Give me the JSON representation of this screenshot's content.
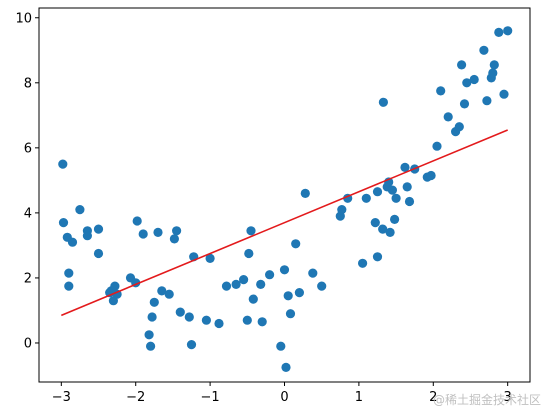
{
  "chart_data": {
    "type": "scatter",
    "title": "",
    "xlabel": "",
    "ylabel": "",
    "xlim": [
      -3.3,
      3.3
    ],
    "ylim": [
      -1.2,
      10.3
    ],
    "xticks": [
      -3,
      -2,
      -1,
      0,
      1,
      2,
      3
    ],
    "yticks": [
      0,
      2,
      4,
      6,
      8,
      10
    ],
    "grid": false,
    "legend": "none",
    "colors": {
      "points": "#1f77b4",
      "fit_line": "#e31a1c",
      "axes": "#000000"
    },
    "series": [
      {
        "kind": "scatter",
        "x": [
          -2.98,
          -2.97,
          -2.92,
          -2.9,
          -2.9,
          -2.85,
          -2.75,
          -2.65,
          -2.65,
          -2.5,
          -2.5,
          -2.35,
          -2.33,
          -2.3,
          -2.28,
          -2.25,
          -2.07,
          -2.0,
          -1.98,
          -1.9,
          -1.82,
          -1.8,
          -1.78,
          -1.75,
          -1.7,
          -1.65,
          -1.55,
          -1.48,
          -1.45,
          -1.4,
          -1.28,
          -1.25,
          -1.22,
          -1.05,
          -1.0,
          -0.88,
          -0.78,
          -0.65,
          -0.55,
          -0.5,
          -0.48,
          -0.45,
          -0.42,
          -0.32,
          -0.3,
          -0.2,
          -0.05,
          0.0,
          0.02,
          0.05,
          0.08,
          0.15,
          0.2,
          0.28,
          0.38,
          0.5,
          0.75,
          0.77,
          0.85,
          1.05,
          1.1,
          1.22,
          1.25,
          1.25,
          1.32,
          1.33,
          1.38,
          1.4,
          1.42,
          1.45,
          1.48,
          1.5,
          1.62,
          1.65,
          1.68,
          1.75,
          1.92,
          1.97,
          2.05,
          2.1,
          2.2,
          2.3,
          2.35,
          2.38,
          2.42,
          2.45,
          2.55,
          2.68,
          2.72,
          2.78,
          2.8,
          2.82,
          2.88,
          2.95,
          3.0
        ],
        "y": [
          5.5,
          3.7,
          3.25,
          2.15,
          1.75,
          3.1,
          4.1,
          3.45,
          3.3,
          3.5,
          2.75,
          1.55,
          1.6,
          1.3,
          1.75,
          1.5,
          2.0,
          1.85,
          3.75,
          3.35,
          0.25,
          -0.1,
          0.8,
          1.25,
          3.4,
          1.6,
          1.5,
          3.2,
          3.45,
          0.95,
          0.8,
          -0.05,
          2.65,
          0.7,
          2.6,
          0.6,
          1.75,
          1.8,
          1.95,
          0.7,
          2.75,
          3.45,
          1.35,
          1.8,
          0.65,
          2.1,
          -0.1,
          2.25,
          -0.75,
          1.45,
          0.9,
          3.05,
          1.55,
          4.6,
          2.15,
          1.75,
          3.9,
          4.1,
          4.45,
          2.45,
          4.45,
          3.7,
          4.65,
          2.65,
          3.5,
          7.4,
          4.8,
          4.95,
          3.4,
          4.7,
          3.8,
          4.45,
          5.4,
          4.8,
          4.35,
          5.35,
          5.1,
          5.15,
          6.05,
          7.75,
          6.95,
          6.5,
          6.65,
          8.55,
          7.35,
          8.0,
          8.1,
          9.0,
          7.45,
          8.15,
          8.3,
          8.55,
          9.55,
          7.65,
          9.6
        ]
      },
      {
        "kind": "line",
        "x": [
          -3.0,
          3.0
        ],
        "y": [
          0.85,
          6.55
        ]
      }
    ]
  },
  "watermark": "@稀土掘金技术社区"
}
